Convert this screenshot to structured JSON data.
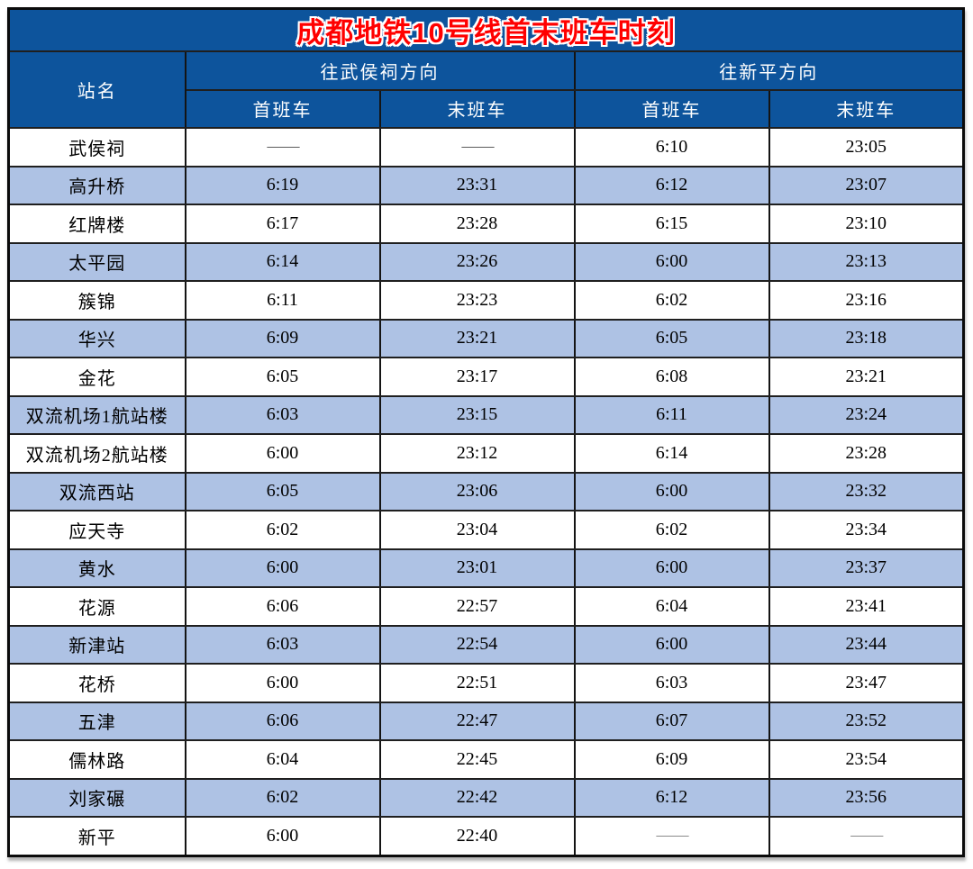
{
  "title": "成都地铁10号线首末班车时刻",
  "colors": {
    "header_bg": "#0d549c",
    "title_color": "#ff0000",
    "alt_row_bg": "#aec2e4",
    "border_color": "#141414"
  },
  "table": {
    "station_header": "站名",
    "direction_groups": [
      {
        "label": "往武侯祠方向",
        "sub": [
          "首班车",
          "末班车"
        ]
      },
      {
        "label": "往新平方向",
        "sub": [
          "首班车",
          "末班车"
        ]
      }
    ],
    "rows": [
      {
        "station": "武侯祠",
        "times": [
          "——",
          "——",
          "6:10",
          "23:05"
        ]
      },
      {
        "station": "高升桥",
        "times": [
          "6:19",
          "23:31",
          "6:12",
          "23:07"
        ]
      },
      {
        "station": "红牌楼",
        "times": [
          "6:17",
          "23:28",
          "6:15",
          "23:10"
        ]
      },
      {
        "station": "太平园",
        "times": [
          "6:14",
          "23:26",
          "6:00",
          "23:13"
        ]
      },
      {
        "station": "簇锦",
        "times": [
          "6:11",
          "23:23",
          "6:02",
          "23:16"
        ]
      },
      {
        "station": "华兴",
        "times": [
          "6:09",
          "23:21",
          "6:05",
          "23:18"
        ]
      },
      {
        "station": "金花",
        "times": [
          "6:05",
          "23:17",
          "6:08",
          "23:21"
        ]
      },
      {
        "station": "双流机场1航站楼",
        "times": [
          "6:03",
          "23:15",
          "6:11",
          "23:24"
        ]
      },
      {
        "station": "双流机场2航站楼",
        "times": [
          "6:00",
          "23:12",
          "6:14",
          "23:28"
        ]
      },
      {
        "station": "双流西站",
        "times": [
          "6:05",
          "23:06",
          "6:00",
          "23:32"
        ]
      },
      {
        "station": "应天寺",
        "times": [
          "6:02",
          "23:04",
          "6:02",
          "23:34"
        ]
      },
      {
        "station": "黄水",
        "times": [
          "6:00",
          "23:01",
          "6:00",
          "23:37"
        ]
      },
      {
        "station": "花源",
        "times": [
          "6:06",
          "22:57",
          "6:04",
          "23:41"
        ]
      },
      {
        "station": "新津站",
        "times": [
          "6:03",
          "22:54",
          "6:00",
          "23:44"
        ]
      },
      {
        "station": "花桥",
        "times": [
          "6:00",
          "22:51",
          "6:03",
          "23:47"
        ]
      },
      {
        "station": "五津",
        "times": [
          "6:06",
          "22:47",
          "6:07",
          "23:52"
        ]
      },
      {
        "station": "儒林路",
        "times": [
          "6:04",
          "22:45",
          "6:09",
          "23:54"
        ]
      },
      {
        "station": "刘家碾",
        "times": [
          "6:02",
          "22:42",
          "6:12",
          "23:56"
        ]
      },
      {
        "station": "新平",
        "times": [
          "6:00",
          "22:40",
          "——",
          "——"
        ]
      }
    ]
  }
}
